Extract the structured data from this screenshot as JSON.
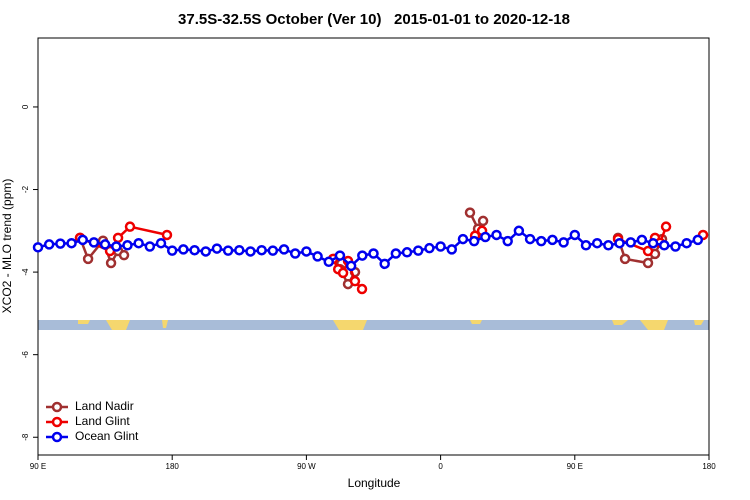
{
  "chart_data": {
    "type": "line",
    "title": "37.5S-32.5S October (Ver 10)   2015-01-01 to 2020-12-18",
    "xlabel": "Longitude",
    "ylabel": "XCO2 - MLO trend (ppm)",
    "xlim": [
      90,
      540
    ],
    "ylim": [
      -8.43,
      1.67
    ],
    "xticks": [
      {
        "value": 90,
        "label": "90 E"
      },
      180,
      {
        "value": 270,
        "label": "90 W"
      },
      {
        "value": 360,
        "label": "0"
      },
      {
        "value": 450,
        "label": "90 E"
      },
      {
        "value": 540,
        "label": "180"
      }
    ],
    "yticks": [
      0,
      -2,
      -4,
      -6,
      -8
    ],
    "legend": "bottom-left",
    "series": [
      {
        "name": "Land Nadir",
        "color": "#a03030",
        "x": [
          118.2,
          123.6,
          133.6,
          139,
          143.7,
          147.7,
          null,
          289.2,
          292.6,
          297.9,
          302.6,
          null,
          379.7,
          385.1,
          388.5,
          null,
          479,
          483.7,
          499.1,
          503.8,
          508.5
        ],
        "values": [
          -3.17,
          -3.68,
          -3.24,
          -3.78,
          -3.49,
          -3.59,
          null,
          -3.68,
          -3.93,
          -4.29,
          -4.0,
          null,
          -2.56,
          -2.95,
          -2.76,
          null,
          -3.17,
          -3.68,
          -3.78,
          -3.56,
          -3.2
        ]
      },
      {
        "name": "Land Glint",
        "color": "#ee0000",
        "x": [
          118.2,
          138.3,
          143.7,
          151.7,
          176.5,
          null,
          287.9,
          291.3,
          294.6,
          297.9,
          302.6,
          307.3,
          null,
          383.1,
          387.8,
          null,
          479,
          499.1,
          503.8,
          507.2,
          511.2,
          null,
          536
        ],
        "values": [
          -3.17,
          -3.49,
          -3.17,
          -2.9,
          -3.1,
          null,
          -3.68,
          -3.93,
          -4.02,
          -3.73,
          -4.22,
          -4.41,
          null,
          -3.12,
          -3.0,
          null,
          -3.2,
          -3.49,
          -3.17,
          -3.29,
          -2.9,
          null,
          -3.1
        ]
      },
      {
        "name": "Ocean Glint",
        "color": "#0000ee",
        "x": [
          90,
          97.5,
          105,
          112.5,
          120,
          127.5,
          135,
          142.5,
          150,
          157.5,
          165,
          172.5,
          180,
          187.5,
          195,
          202.5,
          210,
          217.5,
          225,
          232.5,
          240,
          247.5,
          255,
          262.5,
          270,
          277.5,
          285,
          292.5,
          300,
          307.5,
          315,
          322.5,
          330,
          337.5,
          345,
          352.5,
          360,
          367.5,
          375,
          382.5,
          390,
          397.5,
          405,
          412.5,
          420,
          427.5,
          435,
          442.5,
          450,
          457.5,
          465,
          472.5,
          480,
          487.5,
          495,
          502.5,
          510,
          517.5,
          525,
          532.5
        ],
        "values": [
          -3.4,
          -3.33,
          -3.31,
          -3.3,
          -3.22,
          -3.28,
          -3.33,
          -3.38,
          -3.35,
          -3.3,
          -3.38,
          -3.3,
          -3.48,
          -3.45,
          -3.47,
          -3.5,
          -3.43,
          -3.48,
          -3.47,
          -3.5,
          -3.47,
          -3.48,
          -3.45,
          -3.55,
          -3.5,
          -3.62,
          -3.75,
          -3.6,
          -3.85,
          -3.6,
          -3.55,
          -3.8,
          -3.55,
          -3.52,
          -3.48,
          -3.42,
          -3.38,
          -3.45,
          -3.2,
          -3.25,
          -3.15,
          -3.1,
          -3.25,
          -3.0,
          -3.2,
          -3.25,
          -3.22,
          -3.28,
          -3.1,
          -3.35,
          -3.3,
          -3.35,
          -3.3,
          -3.28,
          -3.22,
          -3.3,
          -3.35,
          -3.38,
          -3.3,
          -3.22
        ]
      }
    ]
  }
}
